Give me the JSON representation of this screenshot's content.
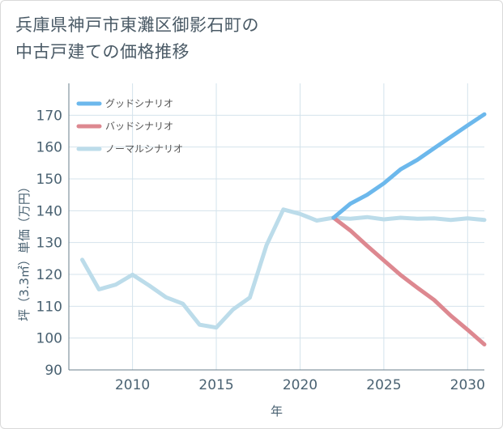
{
  "page": {
    "title_line1": "兵庫県神戸市東灘区御影石町の",
    "title_line2": "中古戸建ての価格推移"
  },
  "chart_data": {
    "type": "line",
    "title": "兵庫県神戸市東灘区御影石町の中古戸建ての価格推移",
    "xlabel": "年",
    "ylabel": "坪（3.3㎡）単価（万円）",
    "xlim": [
      2006.2,
      2031
    ],
    "ylim": [
      90,
      180
    ],
    "x_ticks": [
      2010,
      2015,
      2020,
      2025,
      2030
    ],
    "y_ticks": [
      90,
      100,
      110,
      120,
      130,
      140,
      150,
      160,
      170
    ],
    "grid": true,
    "legend_position": "top-left",
    "series": [
      {
        "name": "グッドシナリオ",
        "color": "#6cb8ec",
        "x": [
          2022,
          2023,
          2024,
          2025,
          2026,
          2027,
          2028,
          2029,
          2030,
          2031
        ],
        "y": [
          137.8,
          142.2,
          145.0,
          148.6,
          153.0,
          156.0,
          159.6,
          163.2,
          166.8,
          170.3
        ]
      },
      {
        "name": "バッドシナリオ",
        "color": "#dd8890",
        "x": [
          2022,
          2023,
          2024,
          2025,
          2026,
          2027,
          2028,
          2029,
          2030,
          2031
        ],
        "y": [
          137.8,
          133.8,
          129.0,
          124.4,
          119.8,
          115.8,
          112.0,
          107.0,
          102.6,
          98.0
        ]
      },
      {
        "name": "ノーマルシナリオ",
        "color": "#bcdcea",
        "x": [
          2007,
          2008,
          2009,
          2010,
          2011,
          2012,
          2013,
          2014,
          2015,
          2016,
          2017,
          2018,
          2019,
          2020,
          2021,
          2022,
          2023,
          2024,
          2025,
          2026,
          2027,
          2028,
          2029,
          2030,
          2031
        ],
        "y": [
          124.6,
          115.3,
          116.8,
          119.9,
          116.5,
          112.8,
          110.8,
          104.2,
          103.3,
          109.0,
          112.7,
          129.2,
          140.4,
          139.0,
          136.9,
          137.8,
          137.5,
          138.0,
          137.3,
          137.8,
          137.5,
          137.6,
          137.1,
          137.6,
          137.1
        ]
      }
    ]
  }
}
